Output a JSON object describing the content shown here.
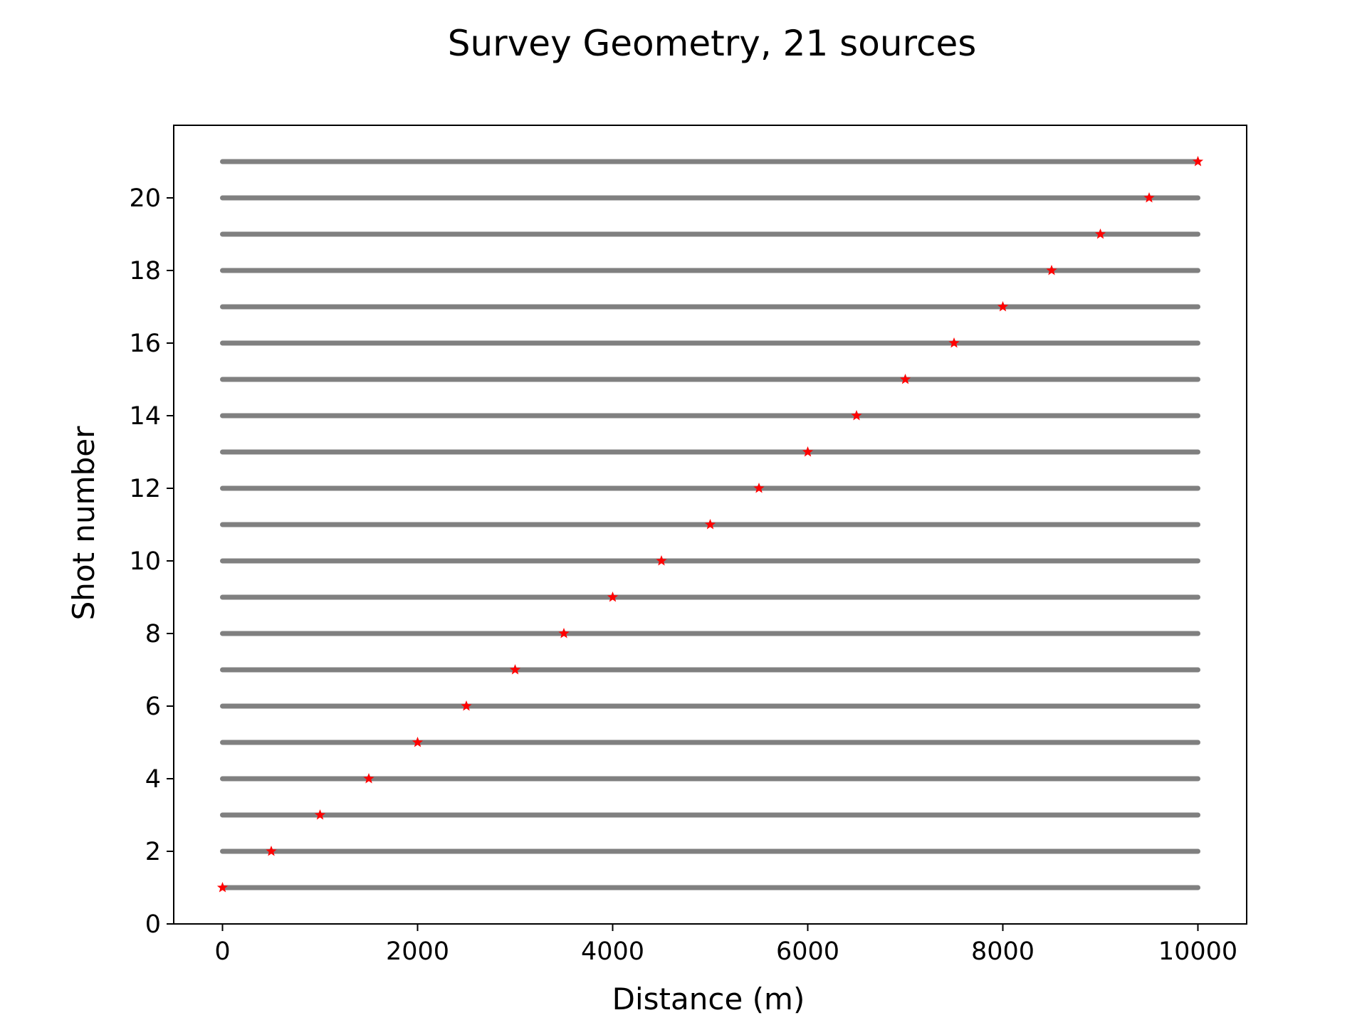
{
  "chart_data": {
    "type": "scatter",
    "title": "Survey Geometry, 21 sources",
    "xlabel": "Distance (m)",
    "ylabel": "Shot number",
    "xlim": [
      -500,
      10500
    ],
    "ylim": [
      0,
      22
    ],
    "xticks": [
      0,
      2000,
      4000,
      6000,
      8000,
      10000
    ],
    "yticks": [
      0,
      2,
      4,
      6,
      8,
      10,
      12,
      14,
      16,
      18,
      20
    ],
    "grid": false,
    "receivers": {
      "x_start": 0,
      "x_end": 10000,
      "color": "#808080"
    },
    "sources": {
      "color": "#ff0000",
      "marker": "star",
      "points": [
        {
          "shot": 1,
          "x": 0
        },
        {
          "shot": 2,
          "x": 500
        },
        {
          "shot": 3,
          "x": 1000
        },
        {
          "shot": 4,
          "x": 1500
        },
        {
          "shot": 5,
          "x": 2000
        },
        {
          "shot": 6,
          "x": 2500
        },
        {
          "shot": 7,
          "x": 3000
        },
        {
          "shot": 8,
          "x": 3500
        },
        {
          "shot": 9,
          "x": 4000
        },
        {
          "shot": 10,
          "x": 4500
        },
        {
          "shot": 11,
          "x": 5000
        },
        {
          "shot": 12,
          "x": 5500
        },
        {
          "shot": 13,
          "x": 6000
        },
        {
          "shot": 14,
          "x": 6500
        },
        {
          "shot": 15,
          "x": 7000
        },
        {
          "shot": 16,
          "x": 7500
        },
        {
          "shot": 17,
          "x": 8000
        },
        {
          "shot": 18,
          "x": 8500
        },
        {
          "shot": 19,
          "x": 9000
        },
        {
          "shot": 20,
          "x": 9500
        },
        {
          "shot": 21,
          "x": 10000
        }
      ]
    }
  }
}
